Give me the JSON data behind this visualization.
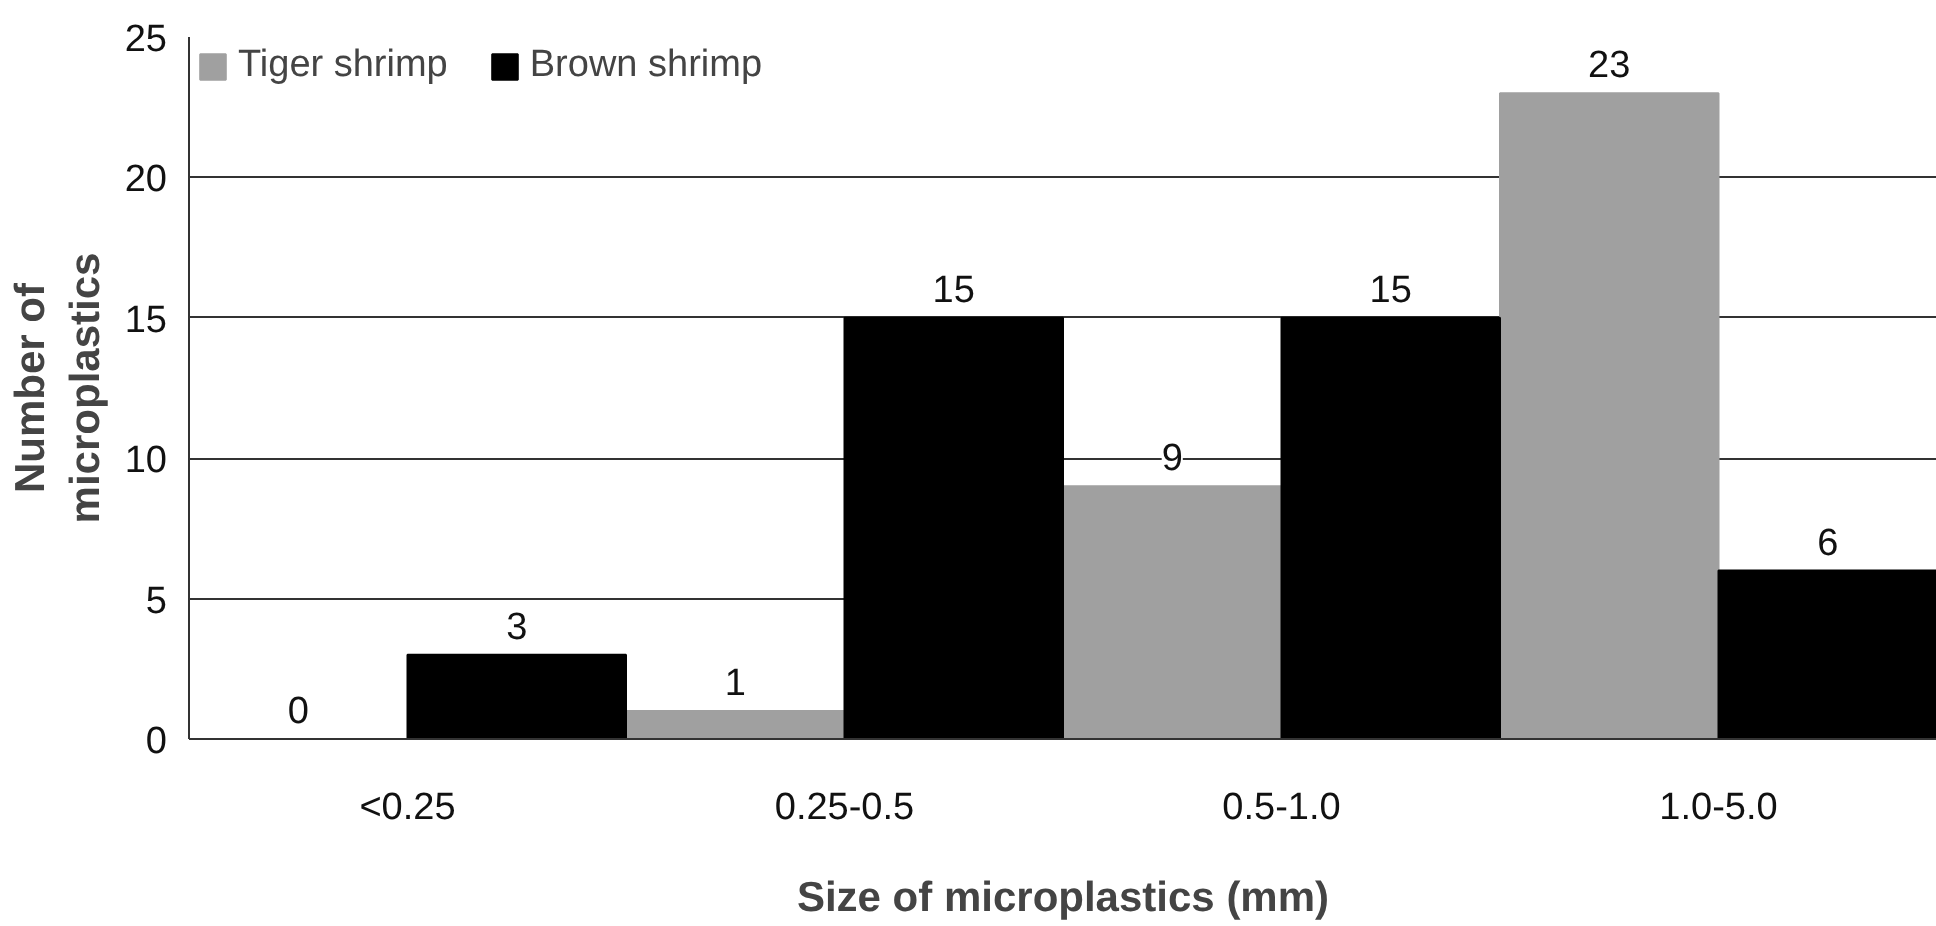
{
  "chart_data": {
    "type": "bar",
    "xlabel": "Size of microplastics (mm)",
    "ylabel": "Number of microplastics",
    "categories": [
      "<0.25",
      "0.25-0.5",
      "0.5-1.0",
      "1.0-5.0"
    ],
    "series": [
      {
        "name": "Tiger shrimp",
        "color": "#a0a0a0",
        "values": [
          0,
          1,
          9,
          23
        ]
      },
      {
        "name": "Brown shrimp",
        "color": "#000000",
        "values": [
          3,
          15,
          15,
          6
        ]
      }
    ],
    "ylim": [
      0,
      25
    ],
    "yticks": [
      0,
      5,
      10,
      15,
      20,
      25
    ],
    "grid": "y",
    "legend": "top left",
    "data_labels": true
  }
}
